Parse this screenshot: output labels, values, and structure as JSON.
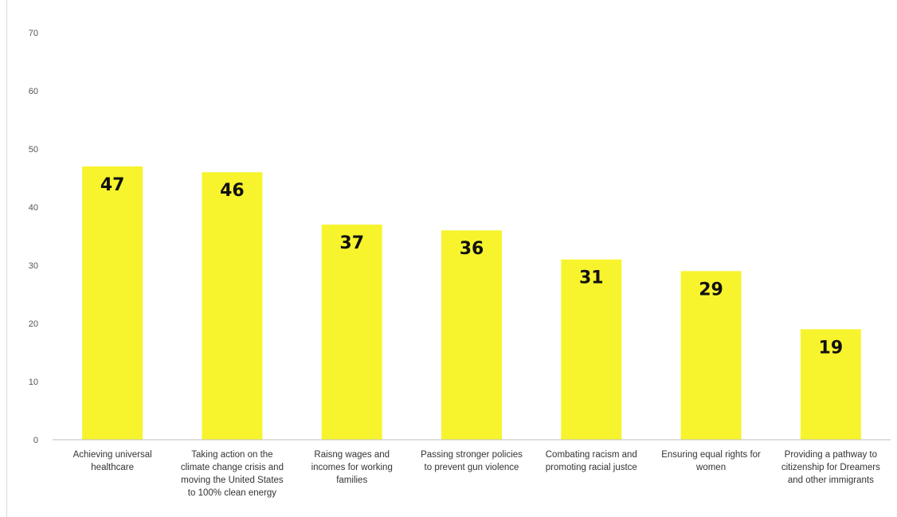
{
  "chart_data": {
    "type": "bar",
    "title": "",
    "xlabel": "",
    "ylabel": "",
    "ylim": [
      0,
      70
    ],
    "yticks": [
      0,
      10,
      20,
      30,
      40,
      50,
      60,
      70
    ],
    "grid": false,
    "legend": "none",
    "bar_color": "#f7f42e",
    "categories": [
      [
        "Achieving universal",
        "healthcare"
      ],
      [
        "Taking action on the",
        "climate change crisis and",
        "moving the United States",
        "to 100% clean energy"
      ],
      [
        "Raisng wages and",
        "incomes for working",
        "families"
      ],
      [
        "Passing stronger policies",
        "to prevent gun violence"
      ],
      [
        "Combating racism and",
        "promoting racial justce"
      ],
      [
        "Ensuring equal rights for",
        "women"
      ],
      [
        "Providing a pathway to",
        "citizenship for Dreamers",
        "and other immigrants"
      ]
    ],
    "values": [
      47,
      46,
      37,
      36,
      31,
      29,
      19
    ]
  }
}
